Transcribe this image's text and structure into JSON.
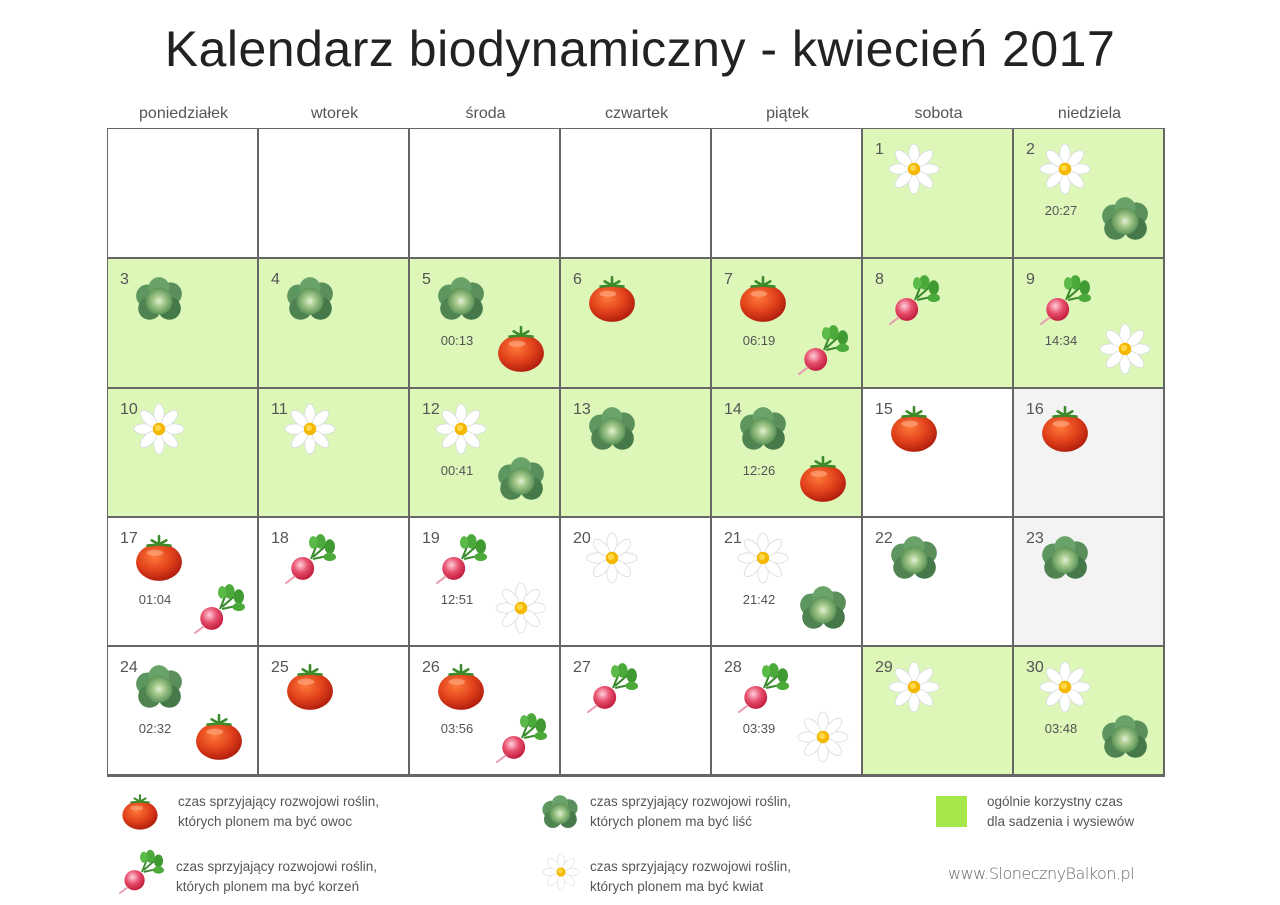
{
  "title": "Kalendarz biodynamiczny - kwiecień 2017",
  "weekdays": [
    "poniedziałek",
    "wtorek",
    "środa",
    "czwartek",
    "piątek",
    "sobota",
    "niedziela"
  ],
  "colors": {
    "favorable_bg": "#dcf7b8",
    "neutral_bg": "#ffffff",
    "gray_bg": "#f3f3f3",
    "legend_square": "#a6e84b",
    "grid_border": "#666666"
  },
  "leading_empty_cells": 5,
  "days": [
    {
      "day": "1",
      "icons": [
        "daisy-icon"
      ],
      "time": "",
      "bg": "green"
    },
    {
      "day": "2",
      "icons": [
        "daisy-icon",
        "cabbage-icon"
      ],
      "time": "20:27",
      "bg": "green"
    },
    {
      "day": "3",
      "icons": [
        "cabbage-icon"
      ],
      "time": "",
      "bg": "green"
    },
    {
      "day": "4",
      "icons": [
        "cabbage-icon"
      ],
      "time": "",
      "bg": "green"
    },
    {
      "day": "5",
      "icons": [
        "cabbage-icon",
        "tomato-icon"
      ],
      "time": "00:13",
      "bg": "green"
    },
    {
      "day": "6",
      "icons": [
        "tomato-icon"
      ],
      "time": "",
      "bg": "green"
    },
    {
      "day": "7",
      "icons": [
        "tomato-icon",
        "radish-icon"
      ],
      "time": "06:19",
      "bg": "green"
    },
    {
      "day": "8",
      "icons": [
        "radish-icon"
      ],
      "time": "",
      "bg": "green"
    },
    {
      "day": "9",
      "icons": [
        "radish-icon",
        "daisy-icon"
      ],
      "time": "14:34",
      "bg": "green"
    },
    {
      "day": "10",
      "icons": [
        "daisy-icon"
      ],
      "time": "",
      "bg": "green"
    },
    {
      "day": "11",
      "icons": [
        "daisy-icon"
      ],
      "time": "",
      "bg": "green"
    },
    {
      "day": "12",
      "icons": [
        "daisy-icon",
        "cabbage-icon"
      ],
      "time": "00:41",
      "bg": "green"
    },
    {
      "day": "13",
      "icons": [
        "cabbage-icon"
      ],
      "time": "",
      "bg": "green"
    },
    {
      "day": "14",
      "icons": [
        "cabbage-icon",
        "tomato-icon"
      ],
      "time": "12:26",
      "bg": "green"
    },
    {
      "day": "15",
      "icons": [
        "tomato-icon"
      ],
      "time": "",
      "bg": "white"
    },
    {
      "day": "16",
      "icons": [
        "tomato-icon"
      ],
      "time": "",
      "bg": "gray"
    },
    {
      "day": "17",
      "icons": [
        "tomato-icon",
        "radish-icon"
      ],
      "time": "01:04",
      "bg": "white"
    },
    {
      "day": "18",
      "icons": [
        "radish-icon"
      ],
      "time": "",
      "bg": "white"
    },
    {
      "day": "19",
      "icons": [
        "radish-icon",
        "daisy-icon"
      ],
      "time": "12:51",
      "bg": "white"
    },
    {
      "day": "20",
      "icons": [
        "daisy-icon"
      ],
      "time": "",
      "bg": "white"
    },
    {
      "day": "21",
      "icons": [
        "daisy-icon",
        "cabbage-icon"
      ],
      "time": "21:42",
      "bg": "white"
    },
    {
      "day": "22",
      "icons": [
        "cabbage-icon"
      ],
      "time": "",
      "bg": "white"
    },
    {
      "day": "23",
      "icons": [
        "cabbage-icon"
      ],
      "time": "",
      "bg": "gray"
    },
    {
      "day": "24",
      "icons": [
        "cabbage-icon",
        "tomato-icon"
      ],
      "time": "02:32",
      "bg": "white"
    },
    {
      "day": "25",
      "icons": [
        "tomato-icon"
      ],
      "time": "",
      "bg": "white"
    },
    {
      "day": "26",
      "icons": [
        "tomato-icon",
        "radish-icon"
      ],
      "time": "03:56",
      "bg": "white"
    },
    {
      "day": "27",
      "icons": [
        "radish-icon"
      ],
      "time": "",
      "bg": "white"
    },
    {
      "day": "28",
      "icons": [
        "radish-icon",
        "daisy-icon"
      ],
      "time": "03:39",
      "bg": "white"
    },
    {
      "day": "29",
      "icons": [
        "daisy-icon"
      ],
      "time": "",
      "bg": "green"
    },
    {
      "day": "30",
      "icons": [
        "daisy-icon",
        "cabbage-icon"
      ],
      "time": "03:48",
      "bg": "green"
    }
  ],
  "legend": {
    "fruit": {
      "icon": "tomato-icon",
      "line1": "czas sprzyjający rozwojowi roślin,",
      "line2": "których plonem ma być owoc"
    },
    "leaf": {
      "icon": "cabbage-icon",
      "line1": "czas sprzyjający rozwojowi roślin,",
      "line2": "których plonem ma być liść"
    },
    "root": {
      "icon": "radish-icon",
      "line1": "czas sprzyjający rozwojowi roślin,",
      "line2": "których plonem ma być korzeń"
    },
    "flower": {
      "icon": "daisy-icon",
      "line1": "czas sprzyjający rozwojowi roślin,",
      "line2": "których plonem ma być kwiat"
    },
    "general": {
      "line1": "ogólnie korzystny czas",
      "line2": "dla sadzenia i wysiewów"
    }
  },
  "website": "www.SlonecznyBalkon.pl"
}
